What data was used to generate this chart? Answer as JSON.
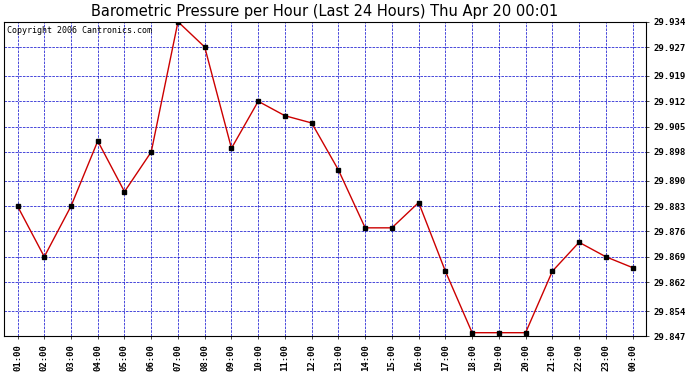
{
  "title": "Barometric Pressure per Hour (Last 24 Hours) Thu Apr 20 00:01",
  "copyright": "Copyright 2006 Cantronics.com",
  "x_labels": [
    "01:00",
    "02:00",
    "03:00",
    "04:00",
    "05:00",
    "06:00",
    "07:00",
    "08:00",
    "09:00",
    "10:00",
    "11:00",
    "12:00",
    "13:00",
    "14:00",
    "15:00",
    "16:00",
    "17:00",
    "18:00",
    "19:00",
    "20:00",
    "21:00",
    "22:00",
    "23:00",
    "00:00"
  ],
  "y_values": [
    29.883,
    29.869,
    29.883,
    29.901,
    29.887,
    29.898,
    29.934,
    29.927,
    29.899,
    29.912,
    29.908,
    29.906,
    29.893,
    29.877,
    29.877,
    29.884,
    29.865,
    29.848,
    29.848,
    29.848,
    29.865,
    29.873,
    29.869,
    29.866
  ],
  "y_ticks": [
    29.847,
    29.854,
    29.862,
    29.869,
    29.876,
    29.883,
    29.89,
    29.898,
    29.905,
    29.912,
    29.919,
    29.927,
    29.934
  ],
  "ylim_min": 29.847,
  "ylim_max": 29.934,
  "line_color": "#cc0000",
  "marker_color": "#000000",
  "bg_color": "#ffffff",
  "plot_bg_color": "#ffffff",
  "grid_color": "#0000cc",
  "title_fontsize": 10.5,
  "tick_fontsize": 6.5,
  "copyright_fontsize": 6.0
}
